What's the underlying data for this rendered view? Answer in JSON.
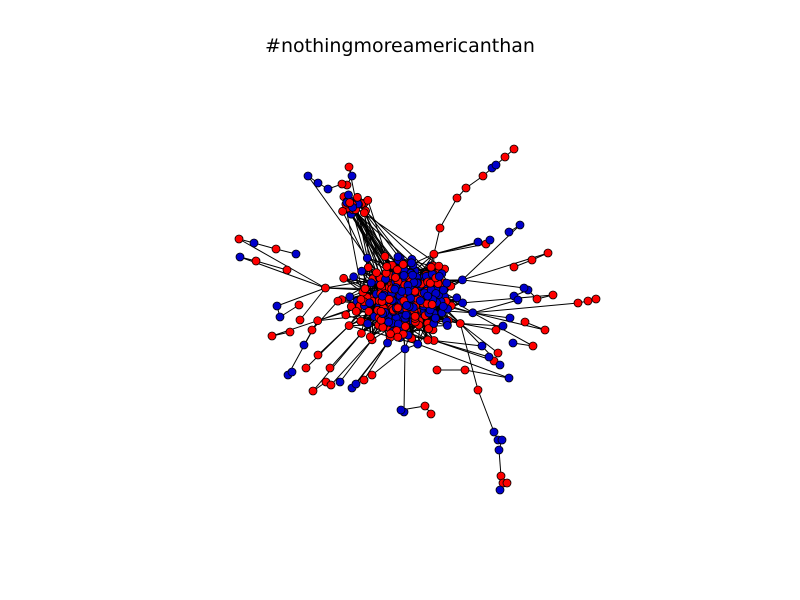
{
  "figure": {
    "title": "#nothingmoreamericanthan"
  },
  "graph": {
    "type": "network",
    "node_colors": {
      "red": "#ff0000",
      "blue": "#0000cc"
    },
    "node_stroke": "#000000",
    "edge_color": "#000000",
    "axes_visible": false
  }
}
